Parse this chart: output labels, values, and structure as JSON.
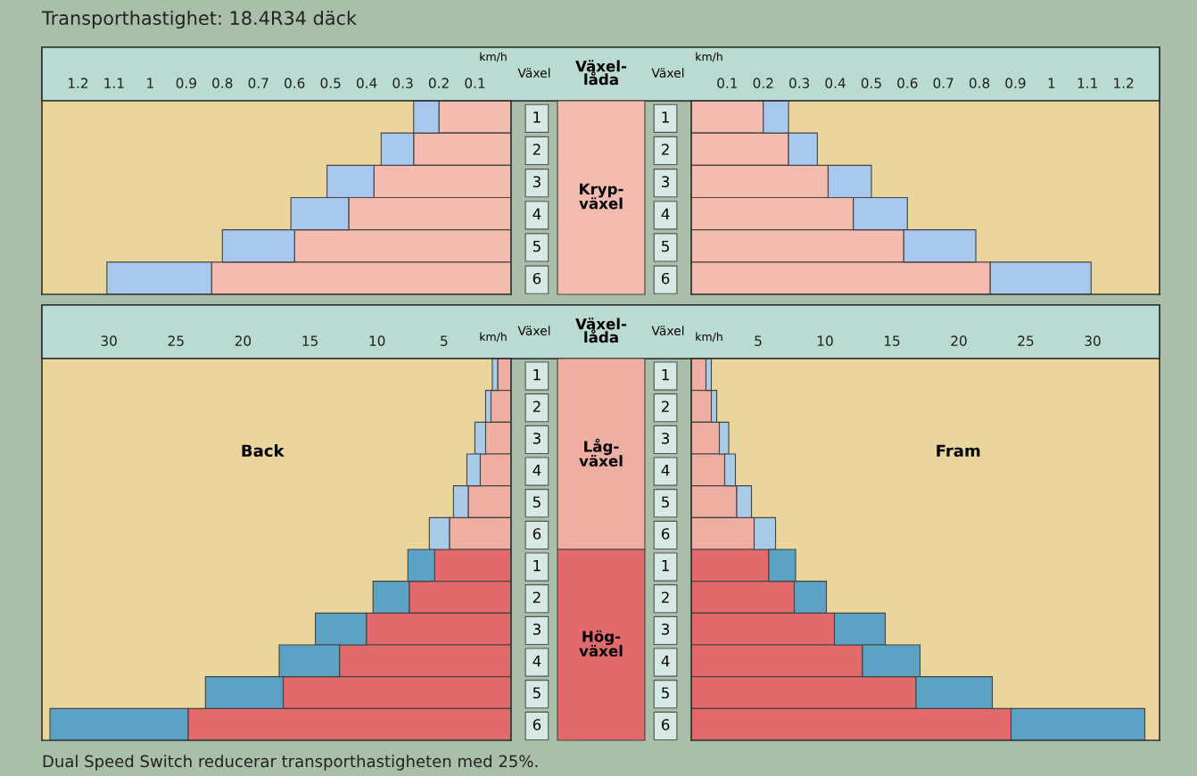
{
  "chart_data": [
    {
      "type": "other",
      "title": "Transporthastighet: 18.4R34 däck",
      "annotations": [
        "Dual Speed Switch reducerar transporthastigheten med 25%."
      ]
    },
    {
      "type": "bar",
      "orientation": "horizontal",
      "stacked": true,
      "categories": [
        "1",
        "2",
        "3",
        "4",
        "5",
        "6"
      ],
      "xlabel": "km/h",
      "ylabel": "Växel",
      "xlim": [
        1.3,
        0
      ],
      "xticks": [
        0.1,
        0.2,
        0.3,
        0.4,
        0.5,
        0.6,
        0.7,
        0.8,
        0.9,
        1,
        1.1,
        1.2
      ],
      "annotations": [
        "Växel-\nlåda",
        "Kryp-\nväxel"
      ],
      "series": [
        {
          "colors": [
            "#f4bcae",
            "#f4bcae",
            "#f4bcae",
            "#f4bcae",
            "#f4bcae",
            "#f4bcae"
          ],
          "values": [
            0.2,
            0.27,
            0.38,
            0.45,
            0.6,
            0.83
          ]
        },
        {
          "colors": [
            "#a9c8ee",
            "#a9c8ee",
            "#a9c8ee",
            "#a9c8ee",
            "#a9c8ee",
            "#a9c8ee"
          ],
          "values": [
            0.07,
            0.09,
            0.13,
            0.16,
            0.2,
            0.29
          ]
        }
      ]
    },
    {
      "type": "bar",
      "orientation": "horizontal",
      "stacked": true,
      "categories": [
        "1",
        "2",
        "3",
        "4",
        "5",
        "6"
      ],
      "xlabel": "km/h",
      "ylabel": "Växel",
      "xlim": [
        0,
        1.3
      ],
      "xticks": [
        0.1,
        0.2,
        0.3,
        0.4,
        0.5,
        0.6,
        0.7,
        0.8,
        0.9,
        1,
        1.1,
        1.2
      ],
      "series": [
        {
          "colors": [
            "#f4bcae",
            "#f4bcae",
            "#f4bcae",
            "#f4bcae",
            "#f4bcae",
            "#f4bcae"
          ],
          "values": [
            0.2,
            0.27,
            0.38,
            0.45,
            0.59,
            0.83
          ]
        },
        {
          "colors": [
            "#a9c8ee",
            "#a9c8ee",
            "#a9c8ee",
            "#a9c8ee",
            "#a9c8ee",
            "#a9c8ee"
          ],
          "values": [
            0.07,
            0.08,
            0.12,
            0.15,
            0.2,
            0.28
          ]
        }
      ]
    },
    {
      "type": "bar",
      "orientation": "horizontal",
      "stacked": true,
      "subtitle": "Back",
      "categories": [
        "1",
        "2",
        "3",
        "4",
        "5",
        "6",
        "1",
        "2",
        "3",
        "4",
        "5",
        "6"
      ],
      "xlabel": "km/h",
      "ylabel": "Växel",
      "xlim": [
        35,
        0
      ],
      "xticks": [
        5,
        10,
        15,
        20,
        25,
        30
      ],
      "annotations": [
        "Växel-\nlåda",
        "Låg-\nväxel",
        "Hög-\nväxel"
      ],
      "series": [
        {
          "colors": [
            "#eeaea2",
            "#eeaea2",
            "#eeaea2",
            "#eeaea2",
            "#eeaea2",
            "#eeaea2",
            "#e26a6c",
            "#e26a6c",
            "#e26a6c",
            "#e26a6c",
            "#e26a6c",
            "#e26a6c"
          ],
          "values": [
            1.0,
            1.5,
            1.9,
            2.3,
            3.2,
            4.6,
            5.7,
            7.6,
            10.8,
            12.8,
            17.0,
            24.1
          ]
        },
        {
          "colors": [
            "#a9cbe8",
            "#a9cbe8",
            "#a9cbe8",
            "#a9cbe8",
            "#a9cbe8",
            "#a9cbe8",
            "#5ba2c4",
            "#5ba2c4",
            "#5ba2c4",
            "#5ba2c4",
            "#5ba2c4",
            "#5ba2c4"
          ],
          "values": [
            0.4,
            0.4,
            0.8,
            1.0,
            1.1,
            1.5,
            2.0,
            2.7,
            3.8,
            4.5,
            5.8,
            10.3
          ]
        }
      ]
    },
    {
      "type": "bar",
      "orientation": "horizontal",
      "stacked": true,
      "subtitle": "Fram",
      "categories": [
        "1",
        "2",
        "3",
        "4",
        "5",
        "6",
        "1",
        "2",
        "3",
        "4",
        "5",
        "6"
      ],
      "xlabel": "km/h",
      "ylabel": "Växel",
      "xlim": [
        0,
        35
      ],
      "xticks": [
        5,
        10,
        15,
        20,
        25,
        30
      ],
      "series": [
        {
          "colors": [
            "#eeaea2",
            "#eeaea2",
            "#eeaea2",
            "#eeaea2",
            "#eeaea2",
            "#eeaea2",
            "#e26a6c",
            "#e26a6c",
            "#e26a6c",
            "#e26a6c",
            "#e26a6c",
            "#e26a6c"
          ],
          "values": [
            1.1,
            1.5,
            2.1,
            2.5,
            3.4,
            4.7,
            5.8,
            7.7,
            10.7,
            12.8,
            16.8,
            23.9
          ]
        },
        {
          "colors": [
            "#a9cbe8",
            "#a9cbe8",
            "#a9cbe8",
            "#a9cbe8",
            "#a9cbe8",
            "#a9cbe8",
            "#5ba2c4",
            "#5ba2c4",
            "#5ba2c4",
            "#5ba2c4",
            "#5ba2c4",
            "#5ba2c4"
          ],
          "values": [
            0.4,
            0.4,
            0.7,
            0.8,
            1.1,
            1.6,
            2.0,
            2.4,
            3.8,
            4.3,
            5.7,
            10.0
          ]
        }
      ]
    }
  ]
}
